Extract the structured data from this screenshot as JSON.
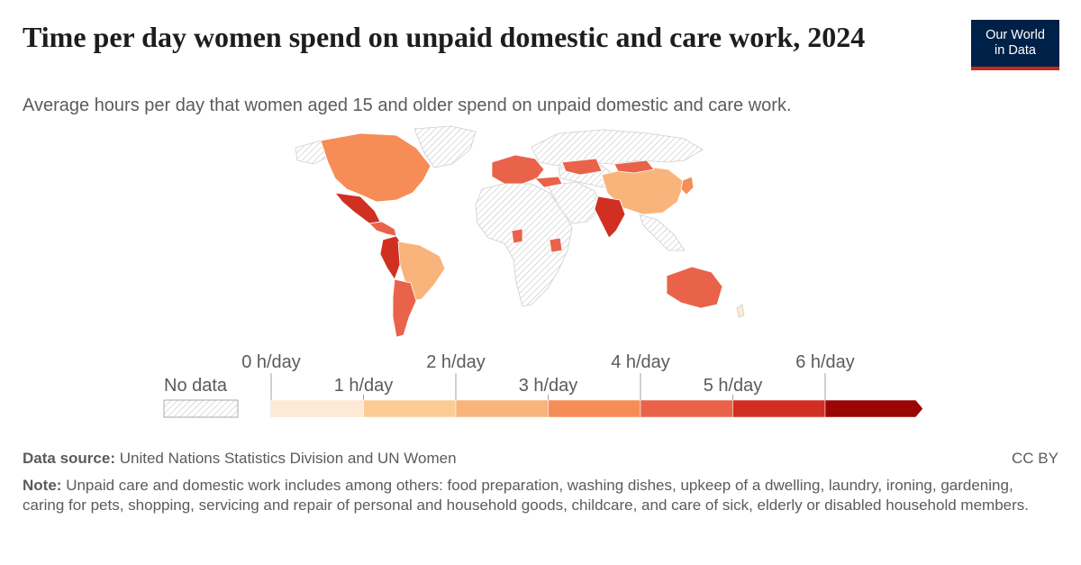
{
  "header": {
    "title": "Time per day women spend on unpaid domestic and care work, 2024",
    "subtitle": "Average hours per day that women aged 15 and older spend on unpaid domestic and care work.",
    "logo_line1": "Our World",
    "logo_line2": "in Data"
  },
  "legend": {
    "no_data_label": "No data",
    "tick_labels": [
      "0 h/day",
      "1 h/day",
      "2 h/day",
      "3 h/day",
      "4 h/day",
      "5 h/day",
      "6 h/day"
    ],
    "bins": [
      {
        "from": 0,
        "to": 1,
        "color": "#fde9d5"
      },
      {
        "from": 1,
        "to": 2,
        "color": "#fbcd94"
      },
      {
        "from": 2,
        "to": 3,
        "color": "#f9b47c"
      },
      {
        "from": 3,
        "to": 4,
        "color": "#f68d57"
      },
      {
        "from": 4,
        "to": 5,
        "color": "#e9634a"
      },
      {
        "from": 5,
        "to": 6,
        "color": "#d02f22"
      },
      {
        "from": 6,
        "to": null,
        "color": "#9a0505"
      }
    ]
  },
  "colors": {
    "no_data": "#eeeeee",
    "border": "#ffffff",
    "title": "#1d1d1d",
    "text": "#5b5b5b",
    "logo_bg": "#002147",
    "logo_accent": "#ce261e"
  },
  "footer": {
    "source_label": "Data source:",
    "source_text": "United Nations Statistics Division and UN Women",
    "license": "CC BY",
    "note_label": "Note:",
    "note_text": "Unpaid care and domestic work includes among others: food preparation, washing dishes, upkeep of a dwelling, laundry, ironing, gardening, caring for pets, shopping, servicing and repair of personal and household goods, childcare, and care of sick, elderly or disabled household members."
  }
}
